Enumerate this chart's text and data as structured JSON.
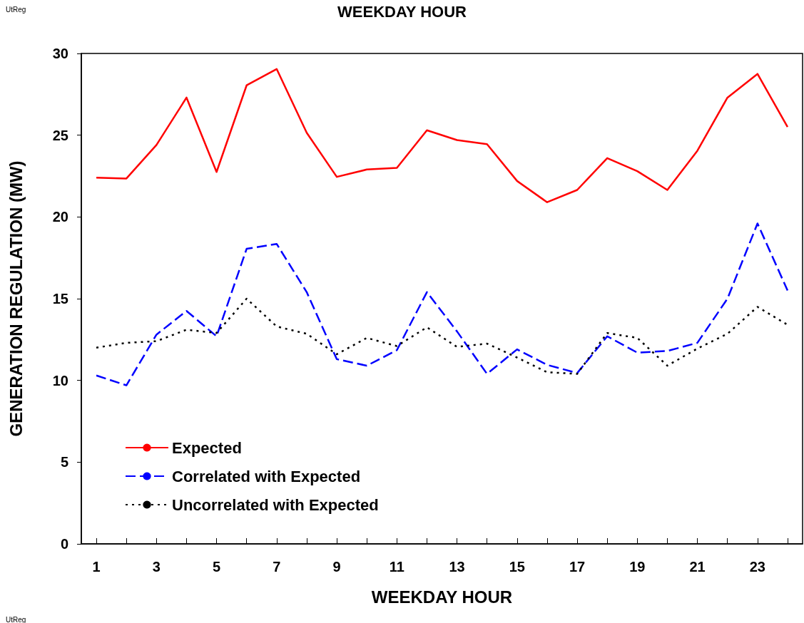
{
  "chart_data": {
    "type": "line",
    "title": "WEEKDAY HOUR",
    "xlabel": "WEEKDAY HOUR",
    "ylabel": "GENERATION REGULATION (MW)",
    "annotations": [
      "UtReg",
      "UtReg"
    ],
    "x": [
      1,
      2,
      3,
      4,
      5,
      6,
      7,
      8,
      9,
      10,
      11,
      12,
      13,
      14,
      15,
      16,
      17,
      18,
      19,
      20,
      21,
      22,
      23,
      24
    ],
    "series": [
      {
        "name": "Expected",
        "color": "#ff0000",
        "line_style": "solid",
        "values": [
          22.4,
          22.35,
          24.4,
          27.3,
          22.75,
          28.05,
          29.05,
          25.15,
          22.45,
          22.9,
          23.0,
          25.3,
          24.7,
          24.45,
          22.2,
          20.9,
          21.65,
          23.6,
          22.8,
          21.65,
          24.05,
          27.3,
          28.75,
          25.5
        ]
      },
      {
        "name": "Correlated with Expected",
        "color": "#0000ff",
        "line_style": "dashed",
        "values": [
          10.3,
          9.7,
          12.8,
          14.25,
          12.7,
          18.05,
          18.35,
          15.4,
          11.3,
          10.9,
          11.85,
          15.4,
          13.0,
          10.4,
          11.9,
          10.95,
          10.45,
          12.7,
          11.7,
          11.8,
          12.3,
          15.0,
          19.6,
          15.5
        ]
      },
      {
        "name": "Uncorrelated with Expected",
        "color": "#000000",
        "line_style": "dotted",
        "values": [
          12.0,
          12.3,
          12.4,
          13.1,
          12.9,
          15.0,
          13.3,
          12.85,
          11.6,
          12.6,
          12.1,
          13.25,
          12.05,
          12.25,
          11.4,
          10.5,
          10.4,
          12.9,
          12.6,
          10.9,
          11.95,
          12.85,
          14.5,
          13.4
        ]
      }
    ],
    "xlim": [
      0.5,
      24.5
    ],
    "xticks": [
      1,
      {
        "value": 2,
        "label": null
      },
      3,
      {
        "value": 4,
        "label": null
      },
      5,
      {
        "value": 6,
        "label": null
      },
      7,
      {
        "value": 8,
        "label": null
      },
      9,
      {
        "value": 10,
        "label": null
      },
      11,
      {
        "value": 12,
        "label": null
      },
      13,
      {
        "value": 14,
        "label": null
      },
      15,
      {
        "value": 16,
        "label": null
      },
      17,
      {
        "value": 18,
        "label": null
      },
      19,
      {
        "value": 20,
        "label": null
      },
      21,
      {
        "value": 22,
        "label": null
      },
      23,
      {
        "value": 24,
        "label": null
      }
    ],
    "ylim": [
      0,
      30
    ],
    "yticks": [
      0,
      5,
      10,
      15,
      20,
      25,
      30
    ],
    "grid": false,
    "legend": "bottom left",
    "marker": "none"
  }
}
